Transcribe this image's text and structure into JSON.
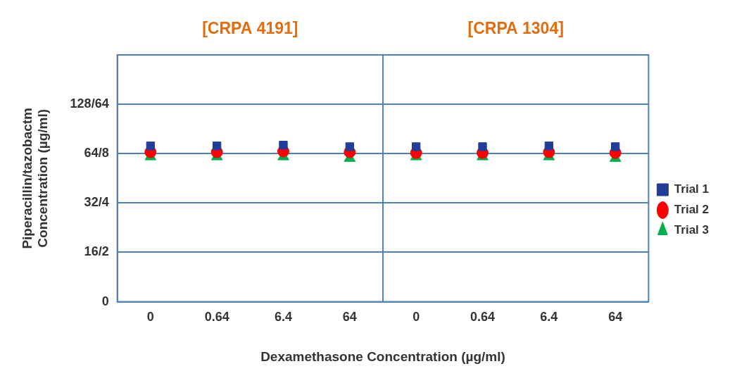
{
  "chart_data": {
    "type": "scatter",
    "panels": [
      "[CRPA 4191]",
      "[CRPA 1304]"
    ],
    "x_label": "Dexamethasone Concentration (µg/ml)",
    "y_label": [
      "Piperacillin/tazobactm",
      "Concentration (µg/ml)"
    ],
    "categories": [
      "0",
      "0.64",
      "6.4",
      "64",
      "0",
      "0.64",
      "6.4",
      "64"
    ],
    "series": [
      {
        "name": "Trial 1",
        "color": "#1f3d99",
        "marker": "square",
        "values": [
          74,
          74,
          75,
          73,
          73,
          73,
          74,
          73
        ]
      },
      {
        "name": "Trial 2",
        "color": "#ff0000",
        "marker": "circle",
        "values": [
          66,
          66,
          67,
          66,
          65,
          65,
          66,
          65
        ]
      },
      {
        "name": "Trial 3",
        "color": "#00b050",
        "marker": "triangle",
        "values": [
          62,
          62,
          62,
          61,
          62,
          62,
          62,
          61
        ]
      }
    ],
    "ylim": [
      0,
      256
    ],
    "yticks": [
      0,
      {
        "value": 16,
        "label": "16/2"
      },
      {
        "value": 32,
        "label": "32/4"
      },
      {
        "value": 64,
        "label": "64/8"
      },
      {
        "value": 128,
        "label": "128/64"
      }
    ],
    "grid": true,
    "legend": "right"
  }
}
